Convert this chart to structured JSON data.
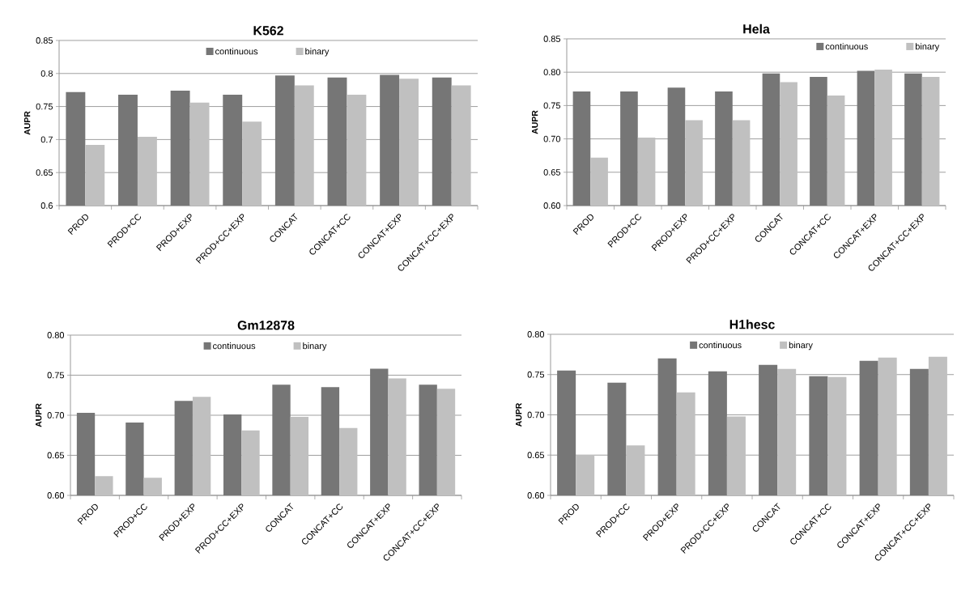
{
  "chart_data": [
    {
      "type": "bar",
      "title": "K562",
      "ylabel": "AUPR",
      "categories": [
        "PROD",
        "PROD+CC",
        "PROD+EXP",
        "PROD+CC+EXP",
        "CONCAT",
        "CONCAT+CC",
        "CONCAT+EXP",
        "CONCAT+CC+EXP"
      ],
      "series": [
        {
          "name": "continuous",
          "color": "#767676",
          "values": [
            0.772,
            0.768,
            0.774,
            0.768,
            0.797,
            0.794,
            0.798,
            0.794
          ]
        },
        {
          "name": "binary",
          "color": "#c0c0c0",
          "values": [
            0.692,
            0.704,
            0.756,
            0.727,
            0.782,
            0.768,
            0.792,
            0.782
          ]
        }
      ],
      "ylim": [
        0.6,
        0.85
      ],
      "yticks": [
        0.6,
        0.65,
        0.7,
        0.75,
        0.8,
        0.85
      ],
      "grid": "y",
      "legend": "top"
    },
    {
      "type": "bar",
      "title": "Hela",
      "ylabel": "AUPR",
      "categories": [
        "PROD",
        "PROD+CC",
        "PROD+EXP",
        "PROD+CC+EXP",
        "CONCAT",
        "CONCAT+CC",
        "CONCAT+EXP",
        "CONCAT+CC+EXP"
      ],
      "series": [
        {
          "name": "continuous",
          "color": "#767676",
          "values": [
            0.771,
            0.771,
            0.777,
            0.771,
            0.798,
            0.793,
            0.802,
            0.798
          ]
        },
        {
          "name": "binary",
          "color": "#c0c0c0",
          "values": [
            0.672,
            0.702,
            0.728,
            0.728,
            0.785,
            0.765,
            0.804,
            0.793
          ]
        }
      ],
      "ylim": [
        0.6,
        0.85
      ],
      "yticks": [
        {
          "value": 0.6,
          "label": "0.60"
        },
        {
          "value": 0.65,
          "label": "0.65"
        },
        {
          "value": 0.7,
          "label": "0.70"
        },
        {
          "value": 0.75,
          "label": "0.75"
        },
        {
          "value": 0.8,
          "label": "0.80"
        },
        {
          "value": 0.85,
          "label": "0.85"
        }
      ],
      "grid": "y",
      "legend": "top right"
    },
    {
      "type": "bar",
      "title": "Gm12878",
      "ylabel": "AUPR",
      "categories": [
        "PROD",
        "PROD+CC",
        "PROD+EXP",
        "PROD+CC+EXP",
        "CONCAT",
        "CONCAT+CC",
        "CONCAT+EXP",
        "CONCAT+CC+EXP"
      ],
      "series": [
        {
          "name": "continuous",
          "color": "#767676",
          "values": [
            0.703,
            0.691,
            0.718,
            0.701,
            0.738,
            0.735,
            0.758,
            0.738
          ]
        },
        {
          "name": "binary",
          "color": "#c0c0c0",
          "values": [
            0.624,
            0.622,
            0.723,
            0.681,
            0.698,
            0.684,
            0.746,
            0.733
          ]
        }
      ],
      "ylim": [
        0.6,
        0.8
      ],
      "yticks": [
        {
          "value": 0.6,
          "label": "0.60"
        },
        {
          "value": 0.65,
          "label": "0.65"
        },
        {
          "value": 0.7,
          "label": "0.70"
        },
        {
          "value": 0.75,
          "label": "0.75"
        },
        {
          "value": 0.8,
          "label": "0.80"
        }
      ],
      "grid": "y",
      "legend": "top"
    },
    {
      "type": "bar",
      "title": "H1hesc",
      "ylabel": "AUPR",
      "categories": [
        "PROD",
        "PROD+CC",
        "PROD+EXP",
        "PROD+CC+EXP",
        "CONCAT",
        "CONCAT+CC",
        "CONCAT+EXP",
        "CONCAT+CC+EXP"
      ],
      "series": [
        {
          "name": "continuous",
          "color": "#767676",
          "values": [
            0.755,
            0.74,
            0.77,
            0.754,
            0.762,
            0.748,
            0.767,
            0.757
          ]
        },
        {
          "name": "binary",
          "color": "#c0c0c0",
          "values": [
            0.65,
            0.662,
            0.728,
            0.698,
            0.757,
            0.747,
            0.771,
            0.772
          ]
        }
      ],
      "ylim": [
        0.6,
        0.8
      ],
      "yticks": [
        {
          "value": 0.6,
          "label": "0.60"
        },
        {
          "value": 0.65,
          "label": "0.65"
        },
        {
          "value": 0.7,
          "label": "0.70"
        },
        {
          "value": 0.75,
          "label": "0.75"
        },
        {
          "value": 0.8,
          "label": "0.80"
        }
      ],
      "grid": "y",
      "legend": "top"
    }
  ]
}
